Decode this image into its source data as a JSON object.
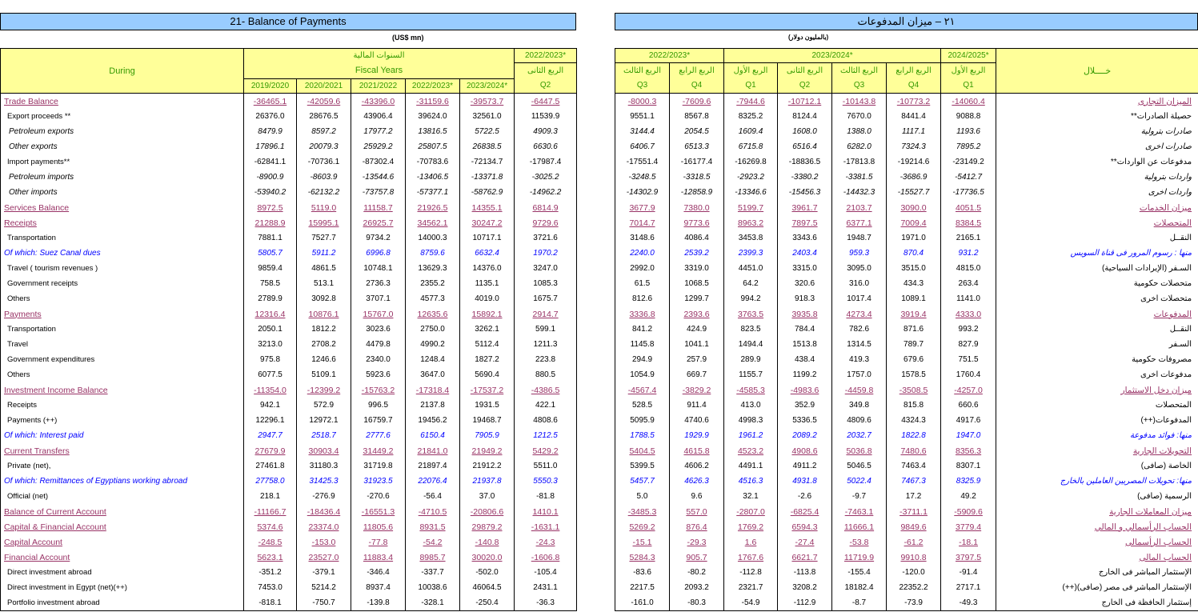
{
  "left": {
    "title": "21- Balance of Payments",
    "units": "(US$ mn)",
    "header": {
      "during": "During",
      "fiscal_ar": "السنوات المالية",
      "fiscal_en": "Fiscal Years",
      "years": [
        "2019/2020",
        "2020/2021",
        "2021/2022",
        "2022/2023*",
        "2023/2024*"
      ],
      "quarter_year": "2022/2023*",
      "quarter_ar": "الربع الثانى",
      "quarter_en": "Q2"
    }
  },
  "right": {
    "title": "٢١ – ميزان المدفوعات",
    "units": "(بالمليون دولار)",
    "header": {
      "during_ar": "خــــلال",
      "years": [
        {
          "label": "2022/2023*",
          "span": 2
        },
        {
          "label": "2023/2024*",
          "span": 4
        },
        {
          "label": "2024/2025*",
          "span": 1
        }
      ],
      "quarters": [
        {
          "ar": "الربع الثالث",
          "en": "Q3"
        },
        {
          "ar": "الربع الرابع",
          "en": "Q4"
        },
        {
          "ar": "الربع الأول",
          "en": "Q1"
        },
        {
          "ar": "الربع الثانى",
          "en": "Q2"
        },
        {
          "ar": "الربع الثالث",
          "en": "Q3"
        },
        {
          "ar": "الربع الرابع",
          "en": "Q4"
        },
        {
          "ar": "الربع الأول",
          "en": "Q1"
        }
      ]
    }
  },
  "colors": {
    "title_bg": "#99ccff",
    "header_bg": "#ffff99",
    "header_text": "#339900",
    "main_row": "#993366",
    "of_which": "#0000ff"
  },
  "rows": [
    {
      "en": "Trade Balance",
      "ar": "الميزان التجارى",
      "style": "main",
      "left": [
        "-36465.1",
        "-42059.6",
        "-43396.0",
        "-31159.6",
        "-39573.7",
        "-6447.5"
      ],
      "right": [
        "-8000.3",
        "-7609.6",
        "-7944.6",
        "-10712.1",
        "-10143.8",
        "-10773.2",
        "-14060.4"
      ]
    },
    {
      "en": "Export proceeds **",
      "ar": "حصيلة الصادرات**",
      "style": "sub",
      "left": [
        "26376.0",
        "28676.5",
        "43906.4",
        "39624.0",
        "32561.0",
        "11539.9"
      ],
      "right": [
        "9551.1",
        "8567.8",
        "8325.2",
        "8124.4",
        "7670.0",
        "8441.4",
        "9088.8"
      ]
    },
    {
      "en": "Petroleum exports",
      "ar": "صادرات بترولية",
      "style": "it",
      "left": [
        "8479.9",
        "8597.2",
        "17977.2",
        "13816.5",
        "5722.5",
        "4909.3"
      ],
      "right": [
        "3144.4",
        "2054.5",
        "1609.4",
        "1608.0",
        "1388.0",
        "1117.1",
        "1193.6"
      ]
    },
    {
      "en": "Other exports",
      "ar": "صادرات اخرى",
      "style": "it",
      "left": [
        "17896.1",
        "20079.3",
        "25929.2",
        "25807.5",
        "26838.5",
        "6630.6"
      ],
      "right": [
        "6406.7",
        "6513.3",
        "6715.8",
        "6516.4",
        "6282.0",
        "7324.3",
        "7895.2"
      ]
    },
    {
      "en": "Import payments**",
      "ar": "مدفوعات عن الواردات**",
      "style": "sub",
      "left": [
        "-62841.1",
        "-70736.1",
        "-87302.4",
        "-70783.6",
        "-72134.7",
        "-17987.4"
      ],
      "right": [
        "-17551.4",
        "-16177.4",
        "-16269.8",
        "-18836.5",
        "-17813.8",
        "-19214.6",
        "-23149.2"
      ]
    },
    {
      "en": "Petroleum imports",
      "ar": "واردات بترولية",
      "style": "it",
      "left": [
        "-8900.9",
        "-8603.9",
        "-13544.6",
        "-13406.5",
        "-13371.8",
        "-3025.2"
      ],
      "right": [
        "-3248.5",
        "-3318.5",
        "-2923.2",
        "-3380.2",
        "-3381.5",
        "-3686.9",
        "-5412.7"
      ]
    },
    {
      "en": "Other imports",
      "ar": "واردات اخرى",
      "style": "it",
      "left": [
        "-53940.2",
        "-62132.2",
        "-73757.8",
        "-57377.1",
        "-58762.9",
        "-14962.2"
      ],
      "right": [
        "-14302.9",
        "-12858.9",
        "-13346.6",
        "-15456.3",
        "-14432.3",
        "-15527.7",
        "-17736.5"
      ]
    },
    {
      "en": "Services Balance",
      "ar": "ميزان الخدمات",
      "style": "main",
      "left": [
        "8972.5",
        "5119.0",
        "11158.7",
        "21926.5",
        "14355.1",
        "6814.9"
      ],
      "right": [
        "3677.9",
        "7380.0",
        "5199.7",
        "3961.7",
        "2103.7",
        "3090.0",
        "4051.5"
      ]
    },
    {
      "en": "Receipts",
      "ar": "المتحصلات",
      "style": "main",
      "left": [
        "21288.9",
        "15995.1",
        "26925.7",
        "34562.1",
        "30247.2",
        "9729.6"
      ],
      "right": [
        "7014.7",
        "9773.6",
        "8963.2",
        "7897.5",
        "6377.1",
        "7009.4",
        "8384.5"
      ]
    },
    {
      "en": "Transportation",
      "ar": "النقــل",
      "style": "sub",
      "left": [
        "7881.1",
        "7527.7",
        "9734.2",
        "14000.3",
        "10717.1",
        "3721.6"
      ],
      "right": [
        "3148.6",
        "4086.4",
        "3453.8",
        "3343.6",
        "1948.7",
        "1971.0",
        "2165.1"
      ]
    },
    {
      "en": "Of which:  Suez Canal dues",
      "ar": "منها :  رسوم المرور فى قناة السويس",
      "style": "blue",
      "left": [
        "5805.7",
        "5911.2",
        "6996.8",
        "8759.6",
        "6632.4",
        "1970.2"
      ],
      "right": [
        "2240.0",
        "2539.2",
        "2399.3",
        "2403.4",
        "959.3",
        "870.4",
        "931.2"
      ]
    },
    {
      "en": "Travel ( tourism revenues )",
      "ar": "السـفر (الإيرادات السياحية)",
      "style": "sub",
      "left": [
        "9859.4",
        "4861.5",
        "10748.1",
        "13629.3",
        "14376.0",
        "3247.0"
      ],
      "right": [
        "2992.0",
        "3319.0",
        "4451.0",
        "3315.0",
        "3095.0",
        "3515.0",
        "4815.0"
      ]
    },
    {
      "en": "Government receipts",
      "ar": "متحصلات حكومية",
      "style": "sub",
      "left": [
        "758.5",
        "513.1",
        "2736.3",
        "2355.2",
        "1135.1",
        "1085.3"
      ],
      "right": [
        "61.5",
        "1068.5",
        "64.2",
        "320.6",
        "316.0",
        "434.3",
        "263.4"
      ]
    },
    {
      "en": "Others",
      "ar": "متحصلات اخرى",
      "style": "sub",
      "left": [
        "2789.9",
        "3092.8",
        "3707.1",
        "4577.3",
        "4019.0",
        "1675.7"
      ],
      "right": [
        "812.6",
        "1299.7",
        "994.2",
        "918.3",
        "1017.4",
        "1089.1",
        "1141.0"
      ]
    },
    {
      "en": "Payments",
      "ar": "المدفوعات",
      "style": "main",
      "left": [
        "12316.4",
        "10876.1",
        "15767.0",
        "12635.6",
        "15892.1",
        "2914.7"
      ],
      "right": [
        "3336.8",
        "2393.6",
        "3763.5",
        "3935.8",
        "4273.4",
        "3919.4",
        "4333.0"
      ]
    },
    {
      "en": "Transportation",
      "ar": "النقــل",
      "style": "sub",
      "left": [
        "2050.1",
        "1812.2",
        "3023.6",
        "2750.0",
        "3262.1",
        "599.1"
      ],
      "right": [
        "841.2",
        "424.9",
        "823.5",
        "784.4",
        "782.6",
        "871.6",
        "993.2"
      ]
    },
    {
      "en": "Travel",
      "ar": "السـفر",
      "style": "sub",
      "left": [
        "3213.0",
        "2708.2",
        "4479.8",
        "4990.2",
        "5112.4",
        "1211.3"
      ],
      "right": [
        "1145.8",
        "1041.1",
        "1494.4",
        "1513.8",
        "1314.5",
        "789.7",
        "827.9"
      ]
    },
    {
      "en": "Government expenditures",
      "ar": "مصروفات حكومية",
      "style": "sub",
      "left": [
        "975.8",
        "1246.6",
        "2340.0",
        "1248.4",
        "1827.2",
        "223.8"
      ],
      "right": [
        "294.9",
        "257.9",
        "289.9",
        "438.4",
        "419.3",
        "679.6",
        "751.5"
      ]
    },
    {
      "en": "Others",
      "ar": "مدفوعات اخرى",
      "style": "sub",
      "left": [
        "6077.5",
        "5109.1",
        "5923.6",
        "3647.0",
        "5690.4",
        "880.5"
      ],
      "right": [
        "1054.9",
        "669.7",
        "1155.7",
        "1199.2",
        "1757.0",
        "1578.5",
        "1760.4"
      ]
    },
    {
      "en": "Investment Income Balance",
      "ar": "ميزان دخل الاستثمار",
      "style": "main",
      "left": [
        "-11354.0",
        "-12399.2",
        "-15763.2",
        "-17318.4",
        "-17537.2",
        "-4386.5"
      ],
      "right": [
        "-4567.4",
        "-3829.2",
        "-4585.3",
        "-4983.6",
        "-4459.8",
        "-3508.5",
        "-4257.0"
      ]
    },
    {
      "en": "Receipts",
      "ar": "المتحصلات",
      "style": "sub",
      "left": [
        "942.1",
        "572.9",
        "996.5",
        "2137.8",
        "1931.5",
        "422.1"
      ],
      "right": [
        "528.5",
        "911.4",
        "413.0",
        "352.9",
        "349.8",
        "815.8",
        "660.6"
      ]
    },
    {
      "en": "Payments (++)",
      "ar": "المدفوعات(++)",
      "style": "sub",
      "left": [
        "12296.1",
        "12972.1",
        "16759.7",
        "19456.2",
        "19468.7",
        "4808.6"
      ],
      "right": [
        "5095.9",
        "4740.6",
        "4998.3",
        "5336.5",
        "4809.6",
        "4324.3",
        "4917.6"
      ]
    },
    {
      "en": "Of which:  Interest paid",
      "ar": "منها:  فوائد مدفوعة",
      "style": "blue",
      "left": [
        "2947.7",
        "2518.7",
        "2777.6",
        "6150.4",
        "7905.9",
        "1212.5"
      ],
      "right": [
        "1788.5",
        "1929.9",
        "1961.2",
        "2089.2",
        "2032.7",
        "1822.8",
        "1947.0"
      ]
    },
    {
      "en": "Current Transfers",
      "ar": "التحويلات  الجارية",
      "style": "main",
      "left": [
        "27679.9",
        "30903.4",
        "31449.2",
        "21841.0",
        "21949.2",
        "5429.2"
      ],
      "right": [
        "5404.5",
        "4615.8",
        "4523.2",
        "4908.6",
        "5036.8",
        "7480.6",
        "8356.3"
      ]
    },
    {
      "en": "Private (net),",
      "ar": "الخاصة (صافى)",
      "style": "sub",
      "left": [
        "27461.8",
        "31180.3",
        "31719.8",
        "21897.4",
        "21912.2",
        "5511.0"
      ],
      "right": [
        "5399.5",
        "4606.2",
        "4491.1",
        "4911.2",
        "5046.5",
        "7463.4",
        "8307.1"
      ]
    },
    {
      "en": "Of  which: Remittances of Egyptians working abroad",
      "ar": "منها: تحويلات المصريين العاملين بالخارج",
      "style": "blue",
      "left": [
        "27758.0",
        "31425.3",
        "31923.5",
        "22076.4",
        "21937.8",
        "5550.3"
      ],
      "right": [
        "5457.7",
        "4626.3",
        "4516.3",
        "4931.8",
        "5022.4",
        "7467.3",
        "8325.9"
      ]
    },
    {
      "en": "Official  (net)",
      "ar": "الرسمية (صافى)",
      "style": "sub",
      "left": [
        "218.1",
        "-276.9",
        "-270.6",
        "-56.4",
        "37.0",
        "-81.8"
      ],
      "right": [
        "5.0",
        "9.6",
        "32.1",
        "-2.6",
        "-9.7",
        "17.2",
        "49.2"
      ]
    },
    {
      "en": "Balance of Current Account",
      "ar": "ميزان المعاملات الجارية",
      "style": "main",
      "left": [
        "-11166.7",
        "-18436.4",
        "-16551.3",
        "-4710.5",
        "-20806.6",
        "1410.1"
      ],
      "right": [
        "-3485.3",
        "557.0",
        "-2807.0",
        "-6825.4",
        "-7463.1",
        "-3711.1",
        "-5909.6"
      ]
    },
    {
      "en": "Capital & Financial Account",
      "ar": "الحساب الرأسمالي و المالي",
      "style": "main",
      "left": [
        "5374.6",
        "23374.0",
        "11805.6",
        "8931.5",
        "29879.2",
        "-1631.1"
      ],
      "right": [
        "5269.2",
        "876.4",
        "1769.2",
        "6594.3",
        "11666.1",
        "9849.6",
        "3779.4"
      ]
    },
    {
      "en": "Capital Account",
      "ar": "الحساب الرأسمالى",
      "style": "main",
      "left": [
        "-248.5",
        "-153.0",
        "-77.8",
        "-54.2",
        "-140.8",
        "-24.3"
      ],
      "right": [
        "-15.1",
        "-29.3",
        "1.6",
        "-27.4",
        "-53.8",
        "-61.2",
        "-18.1"
      ]
    },
    {
      "en": "Financial Account",
      "ar": "الحساب المالى",
      "style": "main",
      "left": [
        "5623.1",
        "23527.0",
        "11883.4",
        "8985.7",
        "30020.0",
        "-1606.8"
      ],
      "right": [
        "5284.3",
        "905.7",
        "1767.6",
        "6621.7",
        "11719.9",
        "9910.8",
        "3797.5"
      ]
    },
    {
      "en": "Direct investment abroad",
      "ar": "الإستثمار المباشر فى الخارج",
      "style": "sub sm",
      "left": [
        "-351.2",
        "-379.1",
        "-346.4",
        "-337.7",
        "-502.0",
        "-105.4"
      ],
      "right": [
        "-83.6",
        "-80.2",
        "-112.8",
        "-113.8",
        "-155.4",
        "-120.0",
        "-91.4"
      ]
    },
    {
      "en": "Direct investment in Egypt (net)(++)",
      "ar": "الإستثمار المباشر فى مصر (صافى)(++)",
      "style": "sub sm",
      "left": [
        "7453.0",
        "5214.2",
        "8937.4",
        "10038.6",
        "46064.5",
        "2431.1"
      ],
      "right": [
        "2217.5",
        "2093.2",
        "2321.7",
        "3208.2",
        "18182.4",
        "22352.2",
        "2717.1"
      ]
    },
    {
      "en": "Portfolio investment abroad",
      "ar": "إستثمار الحافظة فى الخارج",
      "style": "sub sm",
      "left": [
        "-818.1",
        "-750.7",
        "-139.8",
        "-328.1",
        "-250.4",
        "-36.3"
      ],
      "right": [
        "-161.0",
        "-80.3",
        "-54.9",
        "-112.9",
        "-8.7",
        "-73.9",
        "-49.3"
      ]
    }
  ]
}
